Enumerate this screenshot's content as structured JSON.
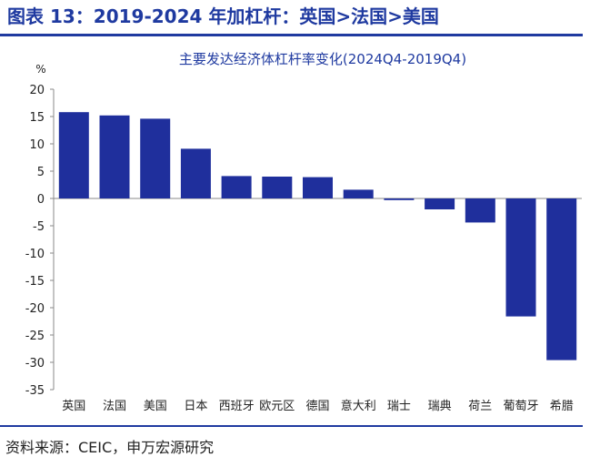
{
  "figure": {
    "title": "图表 13：2019-2024 年加杠杆：英国>法国>美国",
    "source": "资料来源：CEIC，申万宏源研究",
    "accent_color": "#1f3aa0"
  },
  "chart_data": {
    "type": "bar",
    "title": "主要发达经济体杠杆率变化(2024Q4-2019Q4)",
    "ylabel": "%",
    "xlabel": "",
    "ylim": [
      -35,
      20
    ],
    "yticks": [
      20,
      15,
      10,
      5,
      0,
      -5,
      -10,
      -15,
      -20,
      -25,
      -30,
      -35
    ],
    "grid": false,
    "bar_color": "#1f2f9c",
    "categories": [
      "英国",
      "法国",
      "美国",
      "日本",
      "西班牙",
      "欧元区",
      "德国",
      "意大利",
      "瑞士",
      "瑞典",
      "荷兰",
      "葡萄牙",
      "希腊"
    ],
    "values": [
      15.8,
      15.2,
      14.6,
      9.1,
      4.1,
      4.0,
      3.9,
      1.6,
      -0.3,
      -2.0,
      -4.4,
      -21.6,
      -29.6
    ]
  }
}
